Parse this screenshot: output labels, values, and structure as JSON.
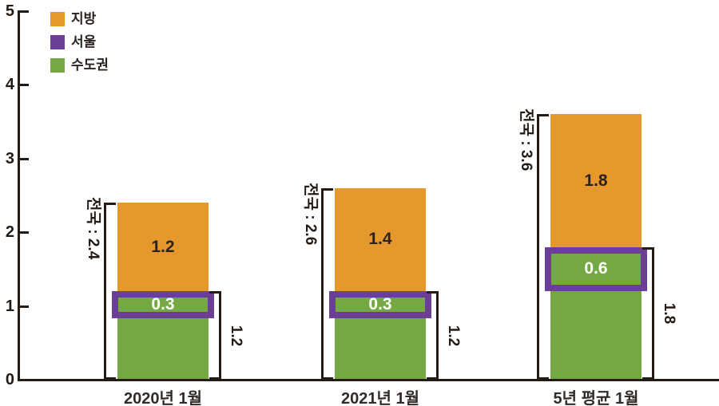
{
  "chart_data": {
    "type": "bar",
    "stacked": true,
    "title": "",
    "xlabel": "",
    "ylabel": "",
    "ylim": [
      0,
      5
    ],
    "yticks": [
      0,
      1,
      2,
      3,
      4,
      5
    ],
    "grid": false,
    "legend_position": "top-left",
    "categories": [
      "2020년 1월",
      "2021년 1월",
      "5년 평균 1월"
    ],
    "series": [
      {
        "name": "지방",
        "color": "#e5992d",
        "values": [
          1.2,
          1.4,
          1.8
        ],
        "style": "stacked-top"
      },
      {
        "name": "서울",
        "color": "#6b3f96",
        "values": [
          0.3,
          0.3,
          0.6
        ],
        "style": "outline-overlay-inside-sudogwon"
      },
      {
        "name": "수도권",
        "color": "#73a843",
        "values": [
          1.2,
          1.2,
          1.8
        ],
        "style": "stacked-bottom"
      }
    ],
    "total_annotations": {
      "prefix": "전국 : ",
      "values": [
        2.4,
        2.6,
        3.6
      ],
      "side": "left-bracket"
    },
    "subtotal_annotations": {
      "values": [
        1.2,
        1.2,
        1.8
      ],
      "side": "right-bracket"
    },
    "segment_labels": {
      "jibang": [
        "1.2",
        "1.4",
        "1.8"
      ],
      "seoul_frame": [
        "0.3",
        "0.3",
        "0.6"
      ]
    }
  },
  "colors": {
    "jibang_orange": "#e5992d",
    "seoul_purple": "#6b3f96",
    "sudogwon_green": "#73a843",
    "axis_ink": "#241b15",
    "label_ink": "#2b2220",
    "frame_label": "#ffffff",
    "background": "#ffffff"
  },
  "legend": {
    "items": [
      {
        "label": "지방"
      },
      {
        "label": "서울"
      },
      {
        "label": "수도권"
      }
    ]
  }
}
